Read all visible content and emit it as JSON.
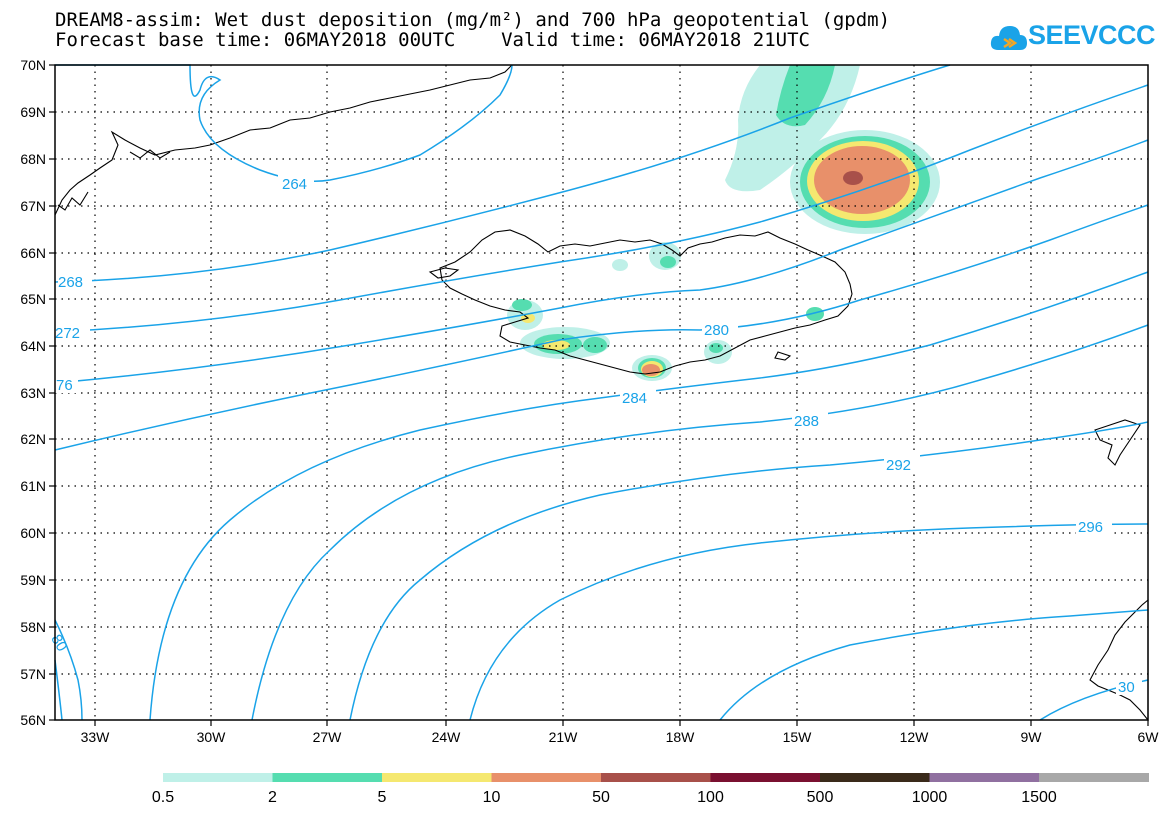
{
  "title": {
    "line1": "DREAM8-assim: Wet dust deposition (mg/m²) and 700 hPa geopotential (gpdm)",
    "line2": "Forecast base time: 06MAY2018 00UTC    Valid time: 06MAY2018 21UTC"
  },
  "logo": {
    "text": "SEEVCCC",
    "icon": "cloud-icon",
    "color": "#1aa3e8"
  },
  "map": {
    "lat_labels": [
      "70N",
      "69N",
      "68N",
      "67N",
      "66N",
      "65N",
      "64N",
      "63N",
      "62N",
      "61N",
      "60N",
      "59N",
      "58N",
      "57N",
      "56N"
    ],
    "lon_labels": [
      "33W",
      "30W",
      "27W",
      "24W",
      "21W",
      "18W",
      "15W",
      "12W",
      "9W",
      "6W"
    ],
    "contour_labels": {
      "c264": "264",
      "c268": "268",
      "c272": "272",
      "c276": "76",
      "c280": "280",
      "c284": "284",
      "c288": "288",
      "c292": "292",
      "c296": "296",
      "c280b": "80",
      "c300": "30"
    },
    "contour_color": "#1aa3e8",
    "coastline_color": "#000000"
  },
  "legend": {
    "labels": [
      "0.5",
      "2",
      "5",
      "10",
      "50",
      "100",
      "500",
      "1000",
      "1500"
    ],
    "colors": [
      "#bff0e8",
      "#55ddb0",
      "#f5e870",
      "#e8906a",
      "#a8504a",
      "#7a1030",
      "#3a2a1a",
      "#9070a0",
      "#a8a8a8"
    ]
  }
}
